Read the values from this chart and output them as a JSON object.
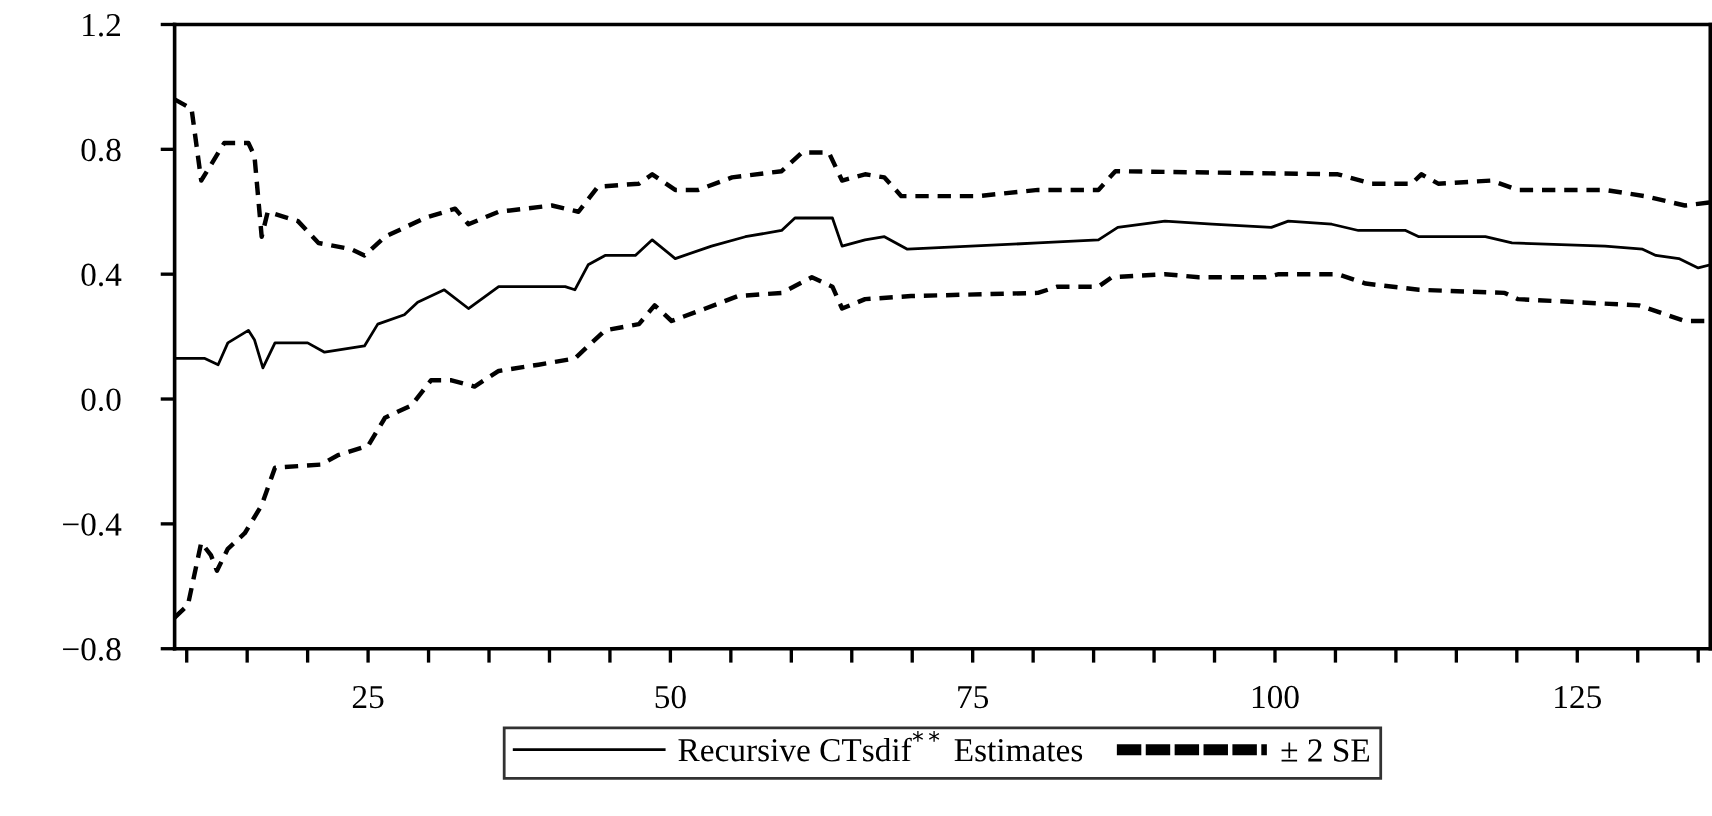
{
  "chart_data": {
    "type": "line",
    "xlim": [
      9,
      136
    ],
    "ylim": [
      -0.8,
      1.2
    ],
    "xticks": [
      {
        "value": 10,
        "label": null
      },
      {
        "value": 15,
        "label": null
      },
      {
        "value": 20,
        "label": null
      },
      25,
      {
        "value": 30,
        "label": null
      },
      {
        "value": 35,
        "label": null
      },
      {
        "value": 40,
        "label": null
      },
      {
        "value": 45,
        "label": null
      },
      50,
      {
        "value": 55,
        "label": null
      },
      {
        "value": 60,
        "label": null
      },
      {
        "value": 65,
        "label": null
      },
      {
        "value": 70,
        "label": null
      },
      75,
      {
        "value": 80,
        "label": null
      },
      {
        "value": 85,
        "label": null
      },
      {
        "value": 90,
        "label": null
      },
      {
        "value": 95,
        "label": null
      },
      100,
      {
        "value": 105,
        "label": null
      },
      {
        "value": 110,
        "label": null
      },
      {
        "value": 115,
        "label": null
      },
      {
        "value": 120,
        "label": null
      },
      125,
      {
        "value": 130,
        "label": null
      },
      {
        "value": 135,
        "label": null
      }
    ],
    "yticks": [
      {
        "value": -0.8,
        "label": "−0.8"
      },
      {
        "value": -0.4,
        "label": "−0.4"
      },
      {
        "value": 0.0,
        "label": "0.0"
      },
      0.4,
      0.8,
      1.2
    ],
    "grid": false,
    "legend": "bottom",
    "marker": "none",
    "series": [
      {
        "name": "Recursive CTsdif$^{**}$ Estimates",
        "color": "#000000",
        "line_style": "solid",
        "x": [
          9,
          11.5,
          12.6,
          13.4,
          15.1,
          15.6,
          16.3,
          17.3,
          20,
          21.4,
          24.7,
          25.8,
          28,
          29.1,
          31.3,
          33.3,
          35.8,
          41.3,
          42.1,
          43.2,
          44.6,
          47.1,
          48.5,
          50.4,
          53.4,
          56.2,
          59.2,
          60.3,
          63.4,
          64.2,
          66.1,
          67.7,
          69.6,
          80.4,
          85.4,
          87,
          90.9,
          94.8,
          99.7,
          101.1,
          104.7,
          106.9,
          110.8,
          111.9,
          117.4,
          119.6,
          127.3,
          130.4,
          131.5,
          133.4,
          135,
          136
        ],
        "values": [
          0.13,
          0.13,
          0.11,
          0.18,
          0.22,
          0.19,
          0.1,
          0.18,
          0.18,
          0.15,
          0.17,
          0.24,
          0.27,
          0.31,
          0.35,
          0.29,
          0.36,
          0.36,
          0.35,
          0.43,
          0.46,
          0.46,
          0.51,
          0.45,
          0.49,
          0.52,
          0.54,
          0.58,
          0.58,
          0.49,
          0.51,
          0.52,
          0.48,
          0.5,
          0.51,
          0.55,
          0.57,
          0.56,
          0.55,
          0.57,
          0.56,
          0.54,
          0.54,
          0.52,
          0.52,
          0.5,
          0.49,
          0.48,
          0.46,
          0.45,
          0.42,
          0.43
        ]
      },
      {
        "name": "± 2 SE",
        "color": "#000000",
        "line_style": "dashed",
        "x": [
          9,
          10.4,
          11.2,
          12,
          13.1,
          15.1,
          15.6,
          16.2,
          16.7,
          19.2,
          20.9,
          23.6,
          24.7,
          26.4,
          29.7,
          32.2,
          33.3,
          35.8,
          40.2,
          42.4,
          44,
          47.4,
          48.5,
          50.4,
          52.3,
          55.1,
          59.2,
          60.9,
          63.1,
          64.2,
          66.1,
          67.7,
          69.1,
          75.4,
          80.4,
          85.4,
          86.8,
          105.2,
          108,
          111.3,
          112.1,
          113.5,
          117.9,
          120.1,
          127.3,
          130.6,
          133.9,
          136
        ],
        "values": [
          0.96,
          0.93,
          0.7,
          0.75,
          0.82,
          0.82,
          0.78,
          0.52,
          0.6,
          0.57,
          0.5,
          0.48,
          0.46,
          0.52,
          0.58,
          0.61,
          0.56,
          0.6,
          0.62,
          0.6,
          0.68,
          0.69,
          0.72,
          0.67,
          0.67,
          0.71,
          0.73,
          0.79,
          0.79,
          0.7,
          0.72,
          0.71,
          0.65,
          0.65,
          0.67,
          0.67,
          0.73,
          0.72,
          0.69,
          0.69,
          0.72,
          0.69,
          0.7,
          0.67,
          0.67,
          0.65,
          0.62,
          0.63
        ]
      },
      {
        "color": "#000000",
        "line_style": "dashed",
        "x": [
          9,
          10.1,
          11.2,
          12,
          12.5,
          13.4,
          14.8,
          16.2,
          17.3,
          21.1,
          22.5,
          25,
          26.4,
          28.6,
          30.2,
          31.9,
          33.8,
          35.8,
          39.1,
          42.1,
          44.6,
          47.4,
          48.7,
          50.1,
          52.9,
          55.6,
          59.2,
          61.7,
          63.4,
          64.2,
          66.1,
          69.9,
          80.4,
          82,
          85.4,
          86.5,
          90.9,
          93.7,
          99.2,
          100.3,
          105.2,
          107.5,
          111.9,
          119,
          120.1,
          130.1,
          133.9,
          136
        ],
        "values": [
          -0.7,
          -0.66,
          -0.46,
          -0.5,
          -0.55,
          -0.48,
          -0.43,
          -0.34,
          -0.22,
          -0.21,
          -0.18,
          -0.15,
          -0.06,
          -0.02,
          0.06,
          0.06,
          0.04,
          0.09,
          0.11,
          0.13,
          0.22,
          0.24,
          0.3,
          0.25,
          0.29,
          0.33,
          0.34,
          0.39,
          0.36,
          0.29,
          0.32,
          0.33,
          0.34,
          0.36,
          0.36,
          0.39,
          0.4,
          0.39,
          0.39,
          0.4,
          0.4,
          0.37,
          0.35,
          0.34,
          0.32,
          0.3,
          0.25,
          0.25
        ]
      }
    ]
  }
}
